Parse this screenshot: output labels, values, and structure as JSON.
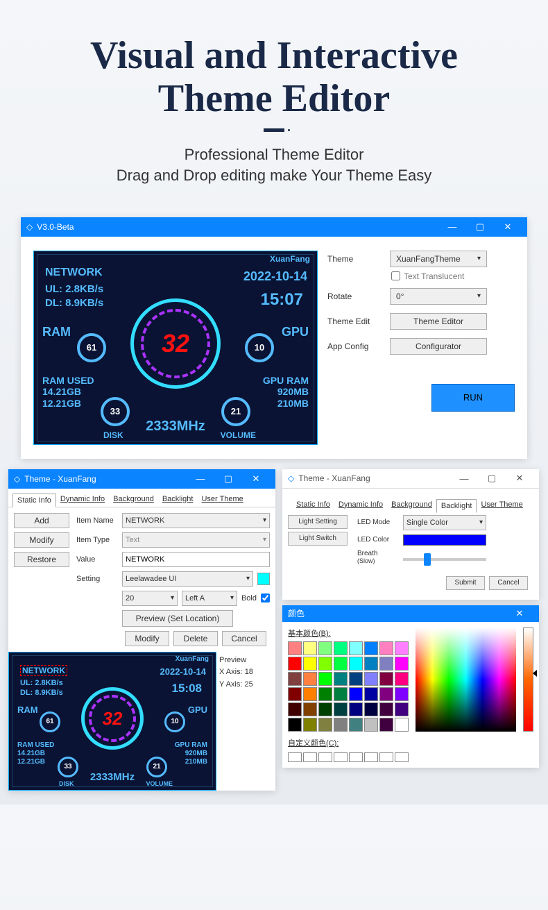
{
  "hero": {
    "title_l1": "Visual and Interactive",
    "title_l2": "Theme Editor",
    "sub_l1": "Professional Theme Editor",
    "sub_l2": "Drag and Drop editing make Your Theme Easy"
  },
  "main_window": {
    "title": "V3.0-Beta",
    "controls": {
      "theme_label": "Theme",
      "theme_value": "XuanFangTheme",
      "translucent_label": "Text Translucent",
      "rotate_label": "Rotate",
      "rotate_value": "0°",
      "theme_edit_label": "Theme Edit",
      "theme_editor_btn": "Theme Editor",
      "app_config_label": "App Config",
      "configurator_btn": "Configurator",
      "run_btn": "RUN"
    }
  },
  "dashboard": {
    "brand": "XuanFang",
    "network_label": "NETWORK",
    "ul": "UL: 2.8KB/s",
    "dl": "DL: 8.9KB/s",
    "date": "2022-10-14",
    "time": "15:07",
    "ram_label": "RAM",
    "gpu_label": "GPU",
    "ram_val": "61",
    "gpu_val": "10",
    "center_val": "32",
    "ram_used_label": "RAM USED",
    "ram_used_1": "14.21GB",
    "ram_used_2": "12.21GB",
    "gpu_ram_label": "GPU RAM",
    "gpu_ram_1": "920MB",
    "gpu_ram_2": "210MB",
    "disk_val": "33",
    "vol_val": "21",
    "disk_label": "DISK",
    "vol_label": "VOLUME",
    "mhz": "2333MHz"
  },
  "theme_editor": {
    "title": "Theme - XuanFang",
    "tabs": [
      "Static Info",
      "Dynamic Info",
      "Background",
      "Backlight",
      "User Theme"
    ],
    "active_tab": 0,
    "buttons": {
      "add": "Add",
      "modify": "Modify",
      "restore": "Restore"
    },
    "form": {
      "item_name_label": "Item Name",
      "item_name": "NETWORK",
      "item_type_label": "Item Type",
      "item_type": "Text",
      "value_label": "Value",
      "value": "NETWORK",
      "setting_label": "Setting",
      "font": "Leelawadee UI",
      "size": "20",
      "align": "Left A",
      "bold_label": "Bold",
      "preview_btn": "Preview (Set Location)"
    },
    "actions": {
      "modify": "Modify",
      "delete": "Delete",
      "cancel": "Cancel"
    },
    "preview": {
      "title": "Preview",
      "xaxis_label": "X Axis:",
      "xaxis": "18",
      "yaxis_label": "Y Axis:",
      "yaxis": "25",
      "time": "15:08"
    }
  },
  "backlight": {
    "title": "Theme - XuanFang",
    "tabs": [
      "Static Info",
      "Dynamic Info",
      "Background",
      "Backlight",
      "User Theme"
    ],
    "active_tab": 3,
    "btns": {
      "setting": "Light Setting",
      "switch": "Light Switch"
    },
    "form": {
      "mode_label": "LED Mode",
      "mode": "Single Color",
      "color_label": "LED Color",
      "color": "#0000ff",
      "breath_label": "Breath",
      "breath_sub": "(Slow)"
    },
    "actions": {
      "submit": "Submit",
      "cancel": "Cancel"
    }
  },
  "color_picker": {
    "title": "颜色",
    "basic_label": "基本颜色(B):",
    "custom_label": "自定义颜色(C):",
    "basic_colors": [
      "#ff8080",
      "#ffff80",
      "#80ff80",
      "#00ff80",
      "#80ffff",
      "#0080ff",
      "#ff80c0",
      "#ff80ff",
      "#ff0000",
      "#ffff00",
      "#80ff00",
      "#00ff40",
      "#00ffff",
      "#0080c0",
      "#8080c0",
      "#ff00ff",
      "#804040",
      "#ff8040",
      "#00ff00",
      "#008080",
      "#004080",
      "#8080ff",
      "#800040",
      "#ff0080",
      "#800000",
      "#ff8000",
      "#008000",
      "#008040",
      "#0000ff",
      "#0000a0",
      "#800080",
      "#8000ff",
      "#400000",
      "#804000",
      "#004000",
      "#004040",
      "#000080",
      "#000040",
      "#400040",
      "#400080",
      "#000000",
      "#808000",
      "#808040",
      "#808080",
      "#408080",
      "#c0c0c0",
      "#400040",
      "#ffffff"
    ]
  }
}
